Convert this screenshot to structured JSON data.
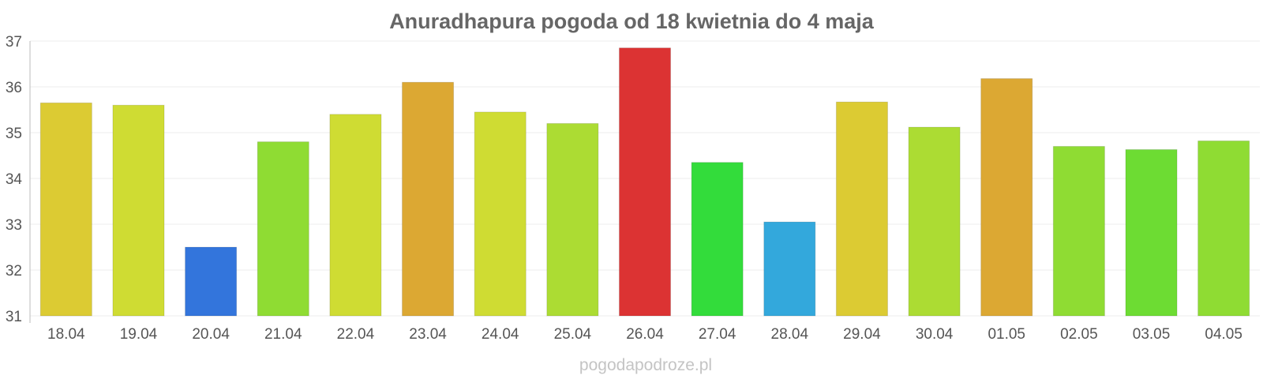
{
  "chart_data": {
    "type": "bar",
    "title": "Anuradhapura pogoda od 18 kwietnia do 4 maja",
    "xlabel": "",
    "ylabel": "",
    "categories": [
      "18.04",
      "19.04",
      "20.04",
      "21.04",
      "22.04",
      "23.04",
      "24.04",
      "25.04",
      "26.04",
      "27.04",
      "28.04",
      "29.04",
      "30.04",
      "01.05",
      "02.05",
      "03.05",
      "04.05"
    ],
    "values": [
      35.65,
      35.6,
      32.5,
      34.8,
      35.4,
      36.1,
      35.45,
      35.2,
      36.85,
      34.35,
      33.05,
      35.67,
      35.12,
      36.18,
      34.7,
      34.63,
      34.82
    ],
    "colors": [
      "#dccb33",
      "#cfdc33",
      "#3375dc",
      "#8fdc33",
      "#cfdc33",
      "#dca833",
      "#cfdc33",
      "#acdc33",
      "#dc3333",
      "#33dc3b",
      "#33a8dc",
      "#dccb33",
      "#acdc33",
      "#dca833",
      "#8fdc33",
      "#6ddc33",
      "#8fdc33"
    ],
    "ylim": [
      31,
      37
    ],
    "yticks": [
      31,
      32,
      33,
      34,
      35,
      36,
      37
    ],
    "grid": true,
    "legend": "none"
  },
  "watermark": "pogodapodroze.pl"
}
